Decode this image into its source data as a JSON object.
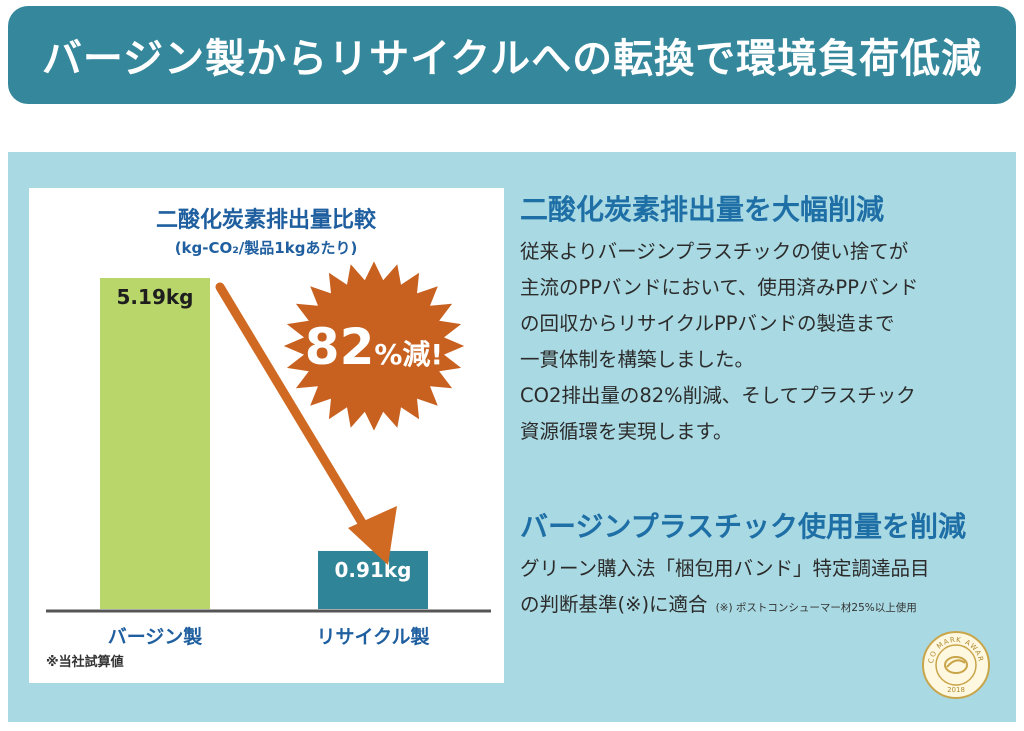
{
  "header": {
    "title": "バージン製からリサイクルへの転換で環境負荷低減"
  },
  "chart_data": {
    "type": "bar",
    "title": "二酸化炭素排出量比較",
    "subtitle": "(kg-CO₂/製品1kgあたり)",
    "categories": [
      "バージン製",
      "リサイクル製"
    ],
    "values": [
      5.19,
      0.91
    ],
    "value_labels": [
      "5.19kg",
      "0.91kg"
    ],
    "bar_colors": [
      "#b9d66a",
      "#2f8497"
    ],
    "ylim": [
      0,
      5.19
    ],
    "badge": {
      "number": "82",
      "unit": "%減!",
      "color": "#c8601f"
    },
    "arrow_color": "#d06a22",
    "footnote": "※当社試算値"
  },
  "section1": {
    "title": "二酸化炭素排出量を大幅削減",
    "lines": [
      "従来よりバージンプラスチックの使い捨てが",
      "主流のPPバンドにおいて、使用済みPPバンド",
      "の回収からリサイクルPPバンドの製造まで",
      "一貫体制を構築しました。",
      "CO2排出量の82%削減、そしてプラスチック",
      "資源循環を実現します。"
    ]
  },
  "section2": {
    "title": "バージンプラスチック使用量を削減",
    "line1": "グリーン購入法「梱包用バンド」特定調達品目",
    "line2": "の判断基準(※)に適合",
    "note": "(※) ポストコンシューマー材25%以上使用"
  },
  "award": {
    "text_top": "ECO MARK AWARD",
    "year": "2018"
  }
}
